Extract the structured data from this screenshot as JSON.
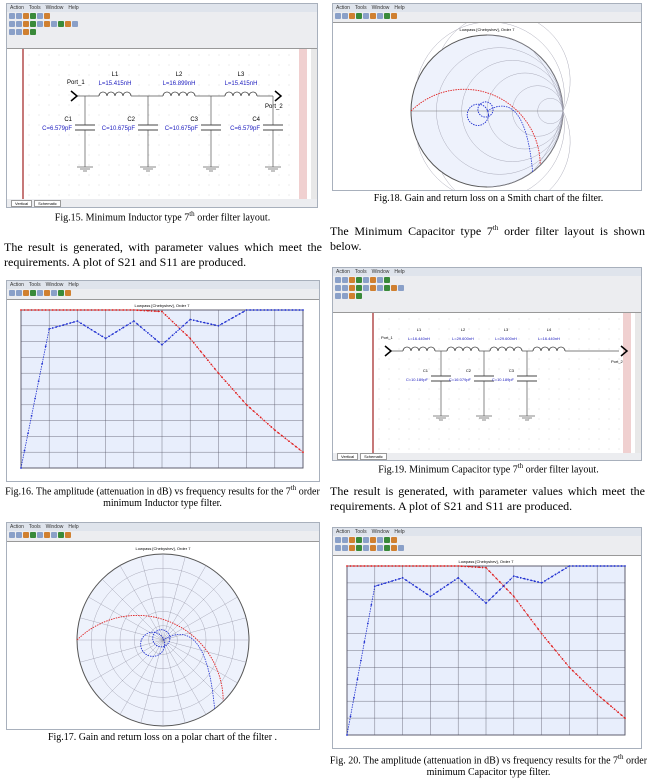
{
  "menu": [
    "Action",
    "Tools",
    "Window",
    "Help"
  ],
  "tabs": [
    "Vertical",
    "Schematic"
  ],
  "fig15": {
    "caption_pre": "Fig.15. Minimum Inductor type 7",
    "caption_sup": "th",
    "caption_post": " order filter layout.",
    "ports": [
      "Port_1",
      "Port_2"
    ],
    "inductors": [
      {
        "name": "L1",
        "value": "L=15.415nH"
      },
      {
        "name": "L2",
        "value": "L=16.899nH"
      },
      {
        "name": "L3",
        "value": "L=15.415nH"
      }
    ],
    "capacitors": [
      {
        "name": "C1",
        "value": "C=6.579pF"
      },
      {
        "name": "C2",
        "value": "C=10.675pF"
      },
      {
        "name": "C3",
        "value": "C=10.675pF"
      },
      {
        "name": "C4",
        "value": "C=6.579pF"
      }
    ]
  },
  "para1": "The result is generated, with parameter values which meet the requirements.  A plot of S21 and S11 are  produced.",
  "fig16": {
    "caption_pre": "Fig.16. The amplitude (attenuation in dB) vs frequency results for the 7",
    "caption_sup": "th",
    "caption_post": " order minimum Inductor type filter."
  },
  "fig17": {
    "caption": "Fig.17.  Gain and return loss on a polar chart of the filter ."
  },
  "fig18": {
    "caption": "Fig.18. Gain and return loss on a Smith chart of the filter."
  },
  "para2_pre": "The Minimum Capacitor type 7",
  "para2_sup": "th",
  "para2_post": " order filter layout is shown below.",
  "fig19": {
    "caption_pre": "Fig.19. Minimum Capacitor type 7",
    "caption_sup": "th",
    "caption_post": " order filter layout.",
    "ports": [
      "Port_1",
      "Port_2"
    ],
    "inductors": [
      {
        "name": "L1",
        "value": "L=16.440nH"
      },
      {
        "name": "L2",
        "value": "L=29.600nH"
      },
      {
        "name": "L3",
        "value": "L=29.600nH"
      },
      {
        "name": "L4",
        "value": "L=16.440nH"
      }
    ],
    "capacitors": [
      {
        "name": "C1",
        "value": "C=10.189pF"
      },
      {
        "name": "C2",
        "value": "C=16.079pF"
      },
      {
        "name": "C3",
        "value": "C=10.189pF"
      }
    ]
  },
  "para3": "The result is generated, with parameter values which meet the requirements.  A plot of S21 and S11 are  produced.",
  "fig20": {
    "caption_pre": "Fig. 20. The amplitude (attenuation in dB) vs frequency results for the 7",
    "caption_sup": "th",
    "caption_post": " order minimum Capacitor type filter."
  },
  "chart_title": "Lowpass [Chebyshev], Order 7",
  "chart_data": [
    {
      "type": "line",
      "title": "Lowpass [Chebyshev], Order 7",
      "ylim": [
        -50,
        0
      ],
      "grid": true,
      "x": [
        0,
        10,
        20,
        30,
        40,
        50,
        60,
        70,
        80,
        90,
        100
      ],
      "series": [
        {
          "name": "S21",
          "color": "#e02020",
          "values": [
            0,
            0,
            0,
            0,
            0,
            -0.5,
            -9,
            -20,
            -30,
            -38,
            -45
          ]
        },
        {
          "name": "S11",
          "color": "#2030d0",
          "values": [
            -50,
            -6,
            -3.5,
            -9,
            -3.5,
            -11,
            -3,
            -5,
            0,
            0,
            0
          ]
        }
      ]
    },
    {
      "type": "line",
      "title": "Lowpass [Chebyshev], Order 7",
      "ylim": [
        -50,
        0
      ],
      "grid": true,
      "x": [
        0,
        10,
        20,
        30,
        40,
        50,
        60,
        70,
        80,
        90,
        100
      ],
      "series": [
        {
          "name": "S21",
          "color": "#e02020",
          "values": [
            0,
            0,
            0,
            0,
            0,
            -0.5,
            -9,
            -20,
            -30,
            -38,
            -45
          ]
        },
        {
          "name": "S11",
          "color": "#2030d0",
          "values": [
            -50,
            -6,
            -3.5,
            -9,
            -3.5,
            -11,
            -3,
            -5,
            0,
            0,
            0
          ]
        }
      ]
    }
  ]
}
